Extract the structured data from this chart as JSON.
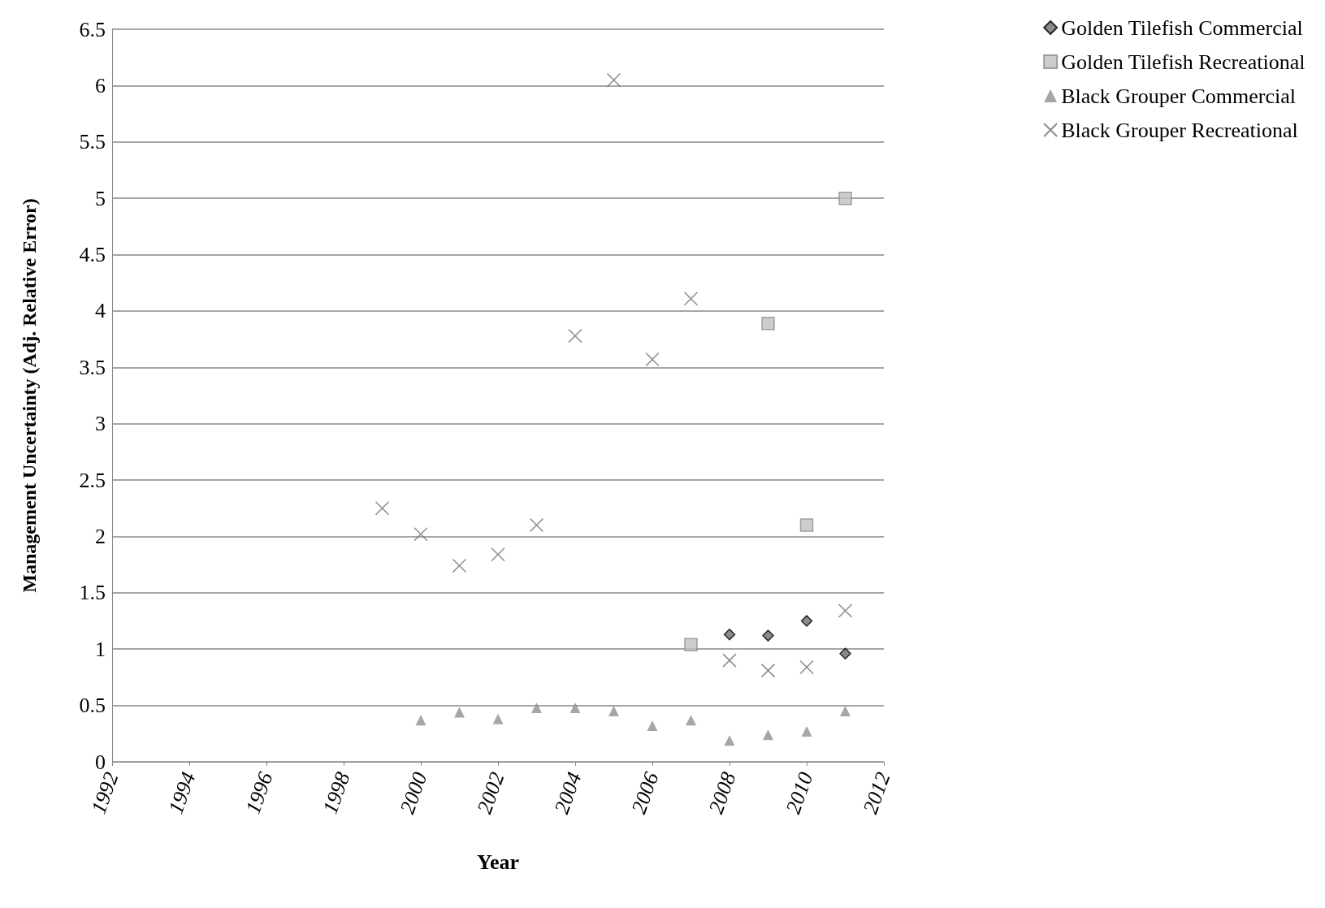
{
  "chart_data": {
    "type": "scatter",
    "xlabel": "Year",
    "ylabel": "Management Uncertainty (Adj. Relative Error)",
    "x": [
      1999,
      2000,
      2001,
      2002,
      2003,
      2004,
      2005,
      2006,
      2007,
      2008,
      2009,
      2010,
      2011
    ],
    "series": [
      {
        "name": "Golden Tilefish Commercial",
        "color": "#6e6e6e",
        "marker": "diamond",
        "values": [
          null,
          null,
          null,
          null,
          null,
          null,
          null,
          null,
          null,
          1.13,
          1.12,
          1.25,
          0.96
        ]
      },
      {
        "name": "Golden Tilefish Recreational",
        "color": "#c0c0c0",
        "marker": "square",
        "values": [
          null,
          null,
          null,
          null,
          null,
          null,
          null,
          null,
          1.04,
          null,
          3.89,
          2.1,
          5.0
        ]
      },
      {
        "name": "Black Grouper Commercial",
        "color": "#909090",
        "marker": "triangle",
        "values": [
          null,
          0.37,
          0.44,
          0.38,
          0.48,
          0.48,
          0.45,
          0.32,
          0.37,
          0.19,
          0.24,
          0.27,
          0.45
        ]
      },
      {
        "name": "Black Grouper Recreational",
        "color": "#6e6e6e",
        "marker": "cross",
        "values": [
          2.25,
          2.02,
          1.74,
          1.84,
          2.1,
          3.78,
          6.05,
          3.57,
          4.11,
          0.9,
          0.81,
          0.84,
          1.34
        ]
      }
    ],
    "xlim": [
      1992,
      2012
    ],
    "xticks": [
      1992,
      1994,
      1996,
      1998,
      2000,
      2002,
      2004,
      2006,
      2008,
      2010,
      2012
    ],
    "ylim": [
      0,
      6.5
    ],
    "yticks": [
      0,
      0.5,
      1,
      1.5,
      2,
      2.5,
      3,
      3.5,
      4,
      4.5,
      5,
      5.5,
      6,
      6.5
    ],
    "grid": "y",
    "legend": "top right"
  }
}
